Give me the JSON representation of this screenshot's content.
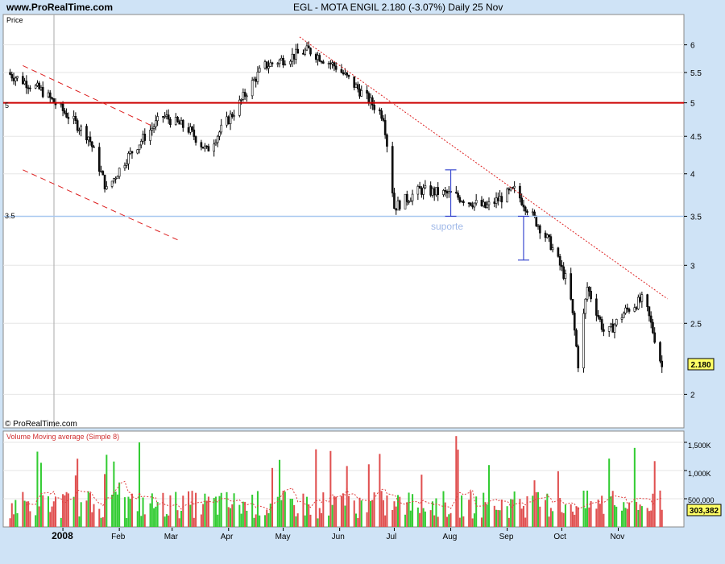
{
  "header": {
    "site": "www.ProRealTime.com",
    "symbol_line": "EGL - MOTA ENGIL    2.180 (-3.07%)    Daily  25 Nov"
  },
  "price_panel": {
    "corner_label": "Price",
    "copyright": "© ProRealTime.com",
    "last_price_badge": "2.180",
    "level_labels": [
      "5",
      "3.5"
    ],
    "annotation": "suporte"
  },
  "volume_panel": {
    "title": "Volume Moving average (Simple 8)",
    "last_volume_badge": "303,382",
    "ticks": [
      "1,500K",
      "1,000K",
      "500,000"
    ]
  },
  "colors": {
    "background": "#cfe3f6",
    "panel": "#ffffff",
    "up_candle": "#ffffff",
    "down_candle": "#111111",
    "volume_up": "#33cc33",
    "volume_down": "#e05050",
    "resistance_line": "#cc0000",
    "support_line": "#a8c8f0",
    "trend_line": "#dd2222",
    "annotation_line": "#3b4bd0"
  },
  "chart_data": {
    "type": "candlestick",
    "title": "EGL - MOTA ENGIL",
    "x_labels": [
      "2008",
      "Feb",
      "Mar",
      "Apr",
      "May",
      "Jun",
      "Jul",
      "Aug",
      "Sep",
      "Oct",
      "Nov"
    ],
    "y_scale": "log",
    "ylim": [
      1.8,
      6.6
    ],
    "y_ticks": [
      2,
      2.5,
      3,
      3.5,
      4,
      4.5,
      5,
      5.5,
      6
    ],
    "horizontal_lines": [
      {
        "value": 5.0,
        "label": "5",
        "color": "#cc0000"
      },
      {
        "value": 3.5,
        "label": "3.5",
        "color": "#a8c8f0"
      }
    ],
    "trendlines": [
      {
        "style": "dashed",
        "from": [
          "2007-12-10",
          5.62
        ],
        "to": [
          "2008-02-19",
          4.65
        ]
      },
      {
        "style": "dashed",
        "from": [
          "2007-12-10",
          4.05
        ],
        "to": [
          "2008-03-04",
          3.25
        ]
      },
      {
        "style": "dotted",
        "from": [
          "2008-05-10",
          6.15
        ],
        "to": [
          "2008-11-28",
          2.7
        ]
      }
    ],
    "measure_bars": [
      {
        "date": "2008-08-01",
        "from": 4.05,
        "to": 3.5
      },
      {
        "date": "2008-09-10",
        "from": 3.5,
        "to": 3.05
      }
    ],
    "last_close": 2.18,
    "close_path": [
      {
        "date": "2007-12-01",
        "close": 5.5
      },
      {
        "date": "2007-12-20",
        "close": 5.2
      },
      {
        "date": "2008-01-15",
        "close": 4.5
      },
      {
        "date": "2008-01-25",
        "close": 3.8
      },
      {
        "date": "2008-02-05",
        "close": 4.2
      },
      {
        "date": "2008-02-25",
        "close": 4.8
      },
      {
        "date": "2008-03-10",
        "close": 4.6
      },
      {
        "date": "2008-03-20",
        "close": 4.3
      },
      {
        "date": "2008-04-05",
        "close": 4.9
      },
      {
        "date": "2008-04-20",
        "close": 5.6
      },
      {
        "date": "2008-05-15",
        "close": 5.9
      },
      {
        "date": "2008-05-30",
        "close": 5.6
      },
      {
        "date": "2008-06-15",
        "close": 5.1
      },
      {
        "date": "2008-06-25",
        "close": 4.8
      },
      {
        "date": "2008-07-01",
        "close": 3.6
      },
      {
        "date": "2008-07-15",
        "close": 3.8
      },
      {
        "date": "2008-08-01",
        "close": 3.75
      },
      {
        "date": "2008-08-20",
        "close": 3.6
      },
      {
        "date": "2008-09-05",
        "close": 3.8
      },
      {
        "date": "2008-09-25",
        "close": 3.2
      },
      {
        "date": "2008-10-05",
        "close": 2.8
      },
      {
        "date": "2008-10-10",
        "close": 2.2
      },
      {
        "date": "2008-10-15",
        "close": 2.8
      },
      {
        "date": "2008-10-25",
        "close": 2.4
      },
      {
        "date": "2008-11-05",
        "close": 2.6
      },
      {
        "date": "2008-11-15",
        "close": 2.7
      },
      {
        "date": "2008-11-25",
        "close": 2.18
      }
    ],
    "volume": {
      "ylim": [
        0,
        1700000
      ],
      "y_ticks": [
        500000,
        1000000,
        1500000
      ],
      "last": 303382,
      "moving_average": "Simple 8"
    }
  }
}
